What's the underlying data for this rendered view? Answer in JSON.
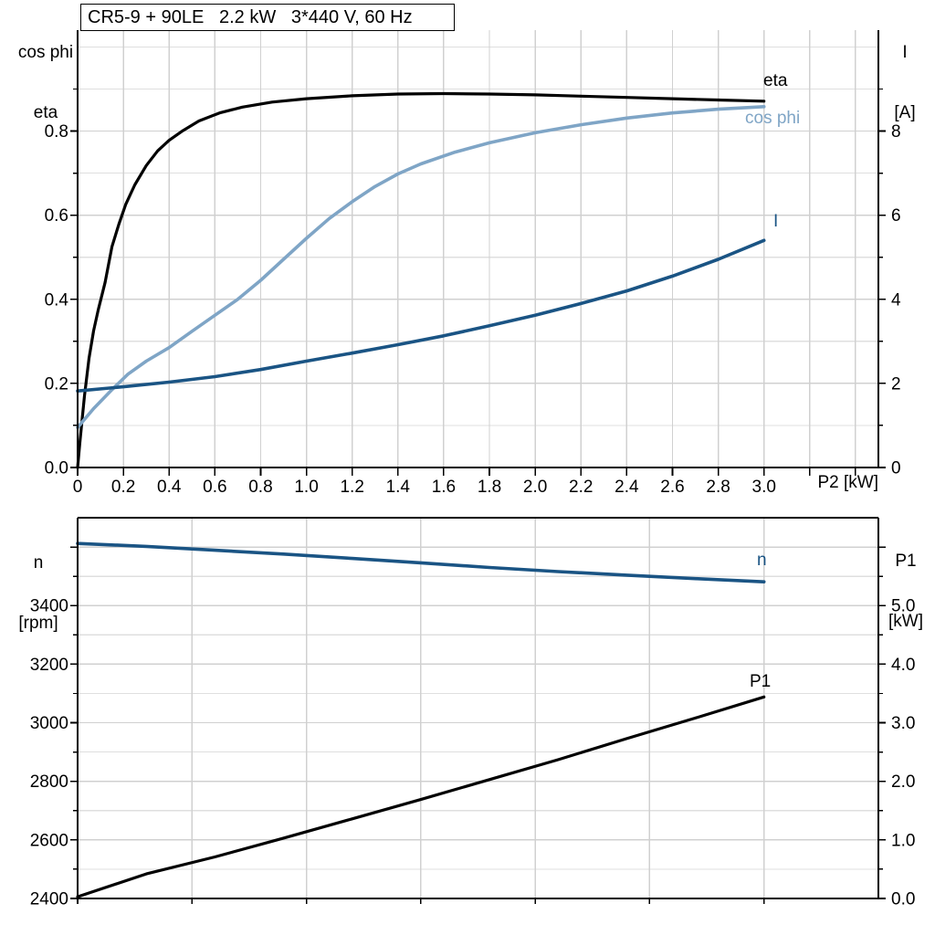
{
  "title": "CR5-9 + 90LE   2.2 kW   3*440 V, 60 Hz",
  "labels": {
    "top_left_line1": "cos phi",
    "top_left_line2": "eta",
    "top_right_line1": "I",
    "top_right_line2": "[A]",
    "bottom_left_line1": "n",
    "bottom_left_line2": "[rpm]",
    "bottom_right_line1": "P1",
    "bottom_right_line2": "[kW]"
  },
  "colors": {
    "black": "#000000",
    "dark_blue": "#1a5484",
    "light_blue": "#7fa5c6",
    "grid_major": "#d0d0d0",
    "grid_minor": "#dfdfdf",
    "axis": "#000000",
    "background": "#ffffff"
  },
  "chart_data": [
    {
      "type": "line",
      "x_axis": {
        "label": "P2 [kW]",
        "min": 0,
        "max": 3.5,
        "gridline_step": 0.2,
        "tick_values": [
          0,
          0.2,
          0.4,
          0.6,
          0.8,
          1.0,
          1.2,
          1.4,
          1.6,
          1.8,
          2.0,
          2.2,
          2.4,
          2.6,
          2.8,
          3.0
        ],
        "tick_labels": [
          "0",
          "0.2",
          "0.4",
          "0.6",
          "0.8",
          "1.0",
          "1.2",
          "1.4",
          "1.6",
          "1.8",
          "2.0",
          "2.2",
          "2.4",
          "2.6",
          "2.8",
          "3.0"
        ]
      },
      "y_left": {
        "label": "cos phi / eta",
        "min": 0,
        "max": 1.04,
        "minor_step": 0.1,
        "tick_values": [
          0,
          0.2,
          0.4,
          0.6,
          0.8
        ],
        "tick_labels": [
          "0.0",
          "0.2",
          "0.4",
          "0.6",
          "0.8"
        ]
      },
      "y_right": {
        "label": "I [A]",
        "min": 0,
        "max": 10.4,
        "minor_step": 1,
        "tick_values": [
          0,
          2,
          4,
          6,
          8
        ],
        "tick_labels": [
          "0",
          "2",
          "4",
          "6",
          "8"
        ]
      },
      "grid": true,
      "legend": "inline-labels",
      "series": [
        {
          "name": "eta",
          "label": "eta",
          "axis": "left",
          "color": "#000000",
          "width": 3.2,
          "points": [
            [
              0,
              0
            ],
            [
              0.01,
              0.06
            ],
            [
              0.02,
              0.115
            ],
            [
              0.03,
              0.17
            ],
            [
              0.05,
              0.26
            ],
            [
              0.07,
              0.325
            ],
            [
              0.09,
              0.375
            ],
            [
              0.12,
              0.44
            ],
            [
              0.15,
              0.525
            ],
            [
              0.18,
              0.578
            ],
            [
              0.21,
              0.625
            ],
            [
              0.25,
              0.672
            ],
            [
              0.3,
              0.718
            ],
            [
              0.35,
              0.753
            ],
            [
              0.4,
              0.778
            ],
            [
              0.46,
              0.801
            ],
            [
              0.53,
              0.824
            ],
            [
              0.62,
              0.843
            ],
            [
              0.72,
              0.857
            ],
            [
              0.85,
              0.869
            ],
            [
              1.0,
              0.877
            ],
            [
              1.2,
              0.884
            ],
            [
              1.4,
              0.888
            ],
            [
              1.6,
              0.889
            ],
            [
              1.8,
              0.888
            ],
            [
              2.0,
              0.886
            ],
            [
              2.2,
              0.883
            ],
            [
              2.4,
              0.88
            ],
            [
              2.6,
              0.877
            ],
            [
              2.8,
              0.874
            ],
            [
              3.0,
              0.871
            ]
          ]
        },
        {
          "name": "cos_phi",
          "label": "cos phi",
          "axis": "left",
          "color": "#7fa5c6",
          "width": 3.6,
          "points": [
            [
              0,
              0.095
            ],
            [
              0.07,
              0.14
            ],
            [
              0.15,
              0.185
            ],
            [
              0.22,
              0.222
            ],
            [
              0.3,
              0.253
            ],
            [
              0.4,
              0.285
            ],
            [
              0.5,
              0.324
            ],
            [
              0.6,
              0.362
            ],
            [
              0.7,
              0.4
            ],
            [
              0.8,
              0.445
            ],
            [
              0.9,
              0.495
            ],
            [
              1.0,
              0.545
            ],
            [
              1.1,
              0.592
            ],
            [
              1.2,
              0.632
            ],
            [
              1.3,
              0.668
            ],
            [
              1.4,
              0.698
            ],
            [
              1.5,
              0.722
            ],
            [
              1.65,
              0.75
            ],
            [
              1.8,
              0.772
            ],
            [
              2.0,
              0.796
            ],
            [
              2.2,
              0.815
            ],
            [
              2.4,
              0.831
            ],
            [
              2.6,
              0.843
            ],
            [
              2.8,
              0.852
            ],
            [
              3.0,
              0.858
            ]
          ]
        },
        {
          "name": "I",
          "label": "I",
          "axis": "right",
          "color": "#1a5484",
          "width": 3.6,
          "points": [
            [
              0,
              1.82
            ],
            [
              0.2,
              1.92
            ],
            [
              0.4,
              2.03
            ],
            [
              0.6,
              2.16
            ],
            [
              0.8,
              2.33
            ],
            [
              1.0,
              2.53
            ],
            [
              1.2,
              2.72
            ],
            [
              1.4,
              2.92
            ],
            [
              1.6,
              3.13
            ],
            [
              1.8,
              3.37
            ],
            [
              2.0,
              3.62
            ],
            [
              2.2,
              3.9
            ],
            [
              2.4,
              4.2
            ],
            [
              2.6,
              4.55
            ],
            [
              2.8,
              4.95
            ],
            [
              3.0,
              5.4
            ]
          ]
        }
      ]
    },
    {
      "type": "line",
      "x_axis": {
        "label": "",
        "min": 0,
        "max": 3.5,
        "gridline_step": 0.5,
        "tick_values": [],
        "tick_labels": []
      },
      "y_left": {
        "label": "n [rpm]",
        "min": 2400,
        "max": 3700,
        "minor_step": 100,
        "tick_values": [
          2400,
          2600,
          2800,
          3000,
          3200,
          3400,
          3600
        ],
        "tick_labels": [
          "2400",
          "2600",
          "2800",
          "3000",
          "3200",
          "3400",
          ""
        ]
      },
      "y_right": {
        "label": "P1 [kW]",
        "min": 0,
        "max": 6.5,
        "minor_step": 0.5,
        "tick_values": [
          0,
          1,
          2,
          3,
          4,
          5,
          6
        ],
        "tick_labels": [
          "0.0",
          "1.0",
          "2.0",
          "3.0",
          "4.0",
          "5.0",
          ""
        ]
      },
      "grid": true,
      "legend": "inline-labels",
      "series": [
        {
          "name": "n",
          "label": "n",
          "axis": "left",
          "color": "#1a5484",
          "width": 3.6,
          "points": [
            [
              0,
              3612
            ],
            [
              0.3,
              3602
            ],
            [
              0.6,
              3589
            ],
            [
              0.9,
              3576
            ],
            [
              1.2,
              3561
            ],
            [
              1.5,
              3546
            ],
            [
              1.8,
              3530
            ],
            [
              2.1,
              3516
            ],
            [
              2.4,
              3504
            ],
            [
              2.7,
              3492
            ],
            [
              3.0,
              3481
            ]
          ]
        },
        {
          "name": "P1",
          "label": "P1",
          "axis": "right",
          "color": "#000000",
          "width": 3.2,
          "points": [
            [
              0,
              0.03
            ],
            [
              0.3,
              0.42
            ],
            [
              0.6,
              0.71
            ],
            [
              0.9,
              1.03
            ],
            [
              1.2,
              1.36
            ],
            [
              1.5,
              1.69
            ],
            [
              1.8,
              2.03
            ],
            [
              2.1,
              2.37
            ],
            [
              2.4,
              2.73
            ],
            [
              2.7,
              3.08
            ],
            [
              3.0,
              3.44
            ]
          ]
        }
      ]
    }
  ]
}
